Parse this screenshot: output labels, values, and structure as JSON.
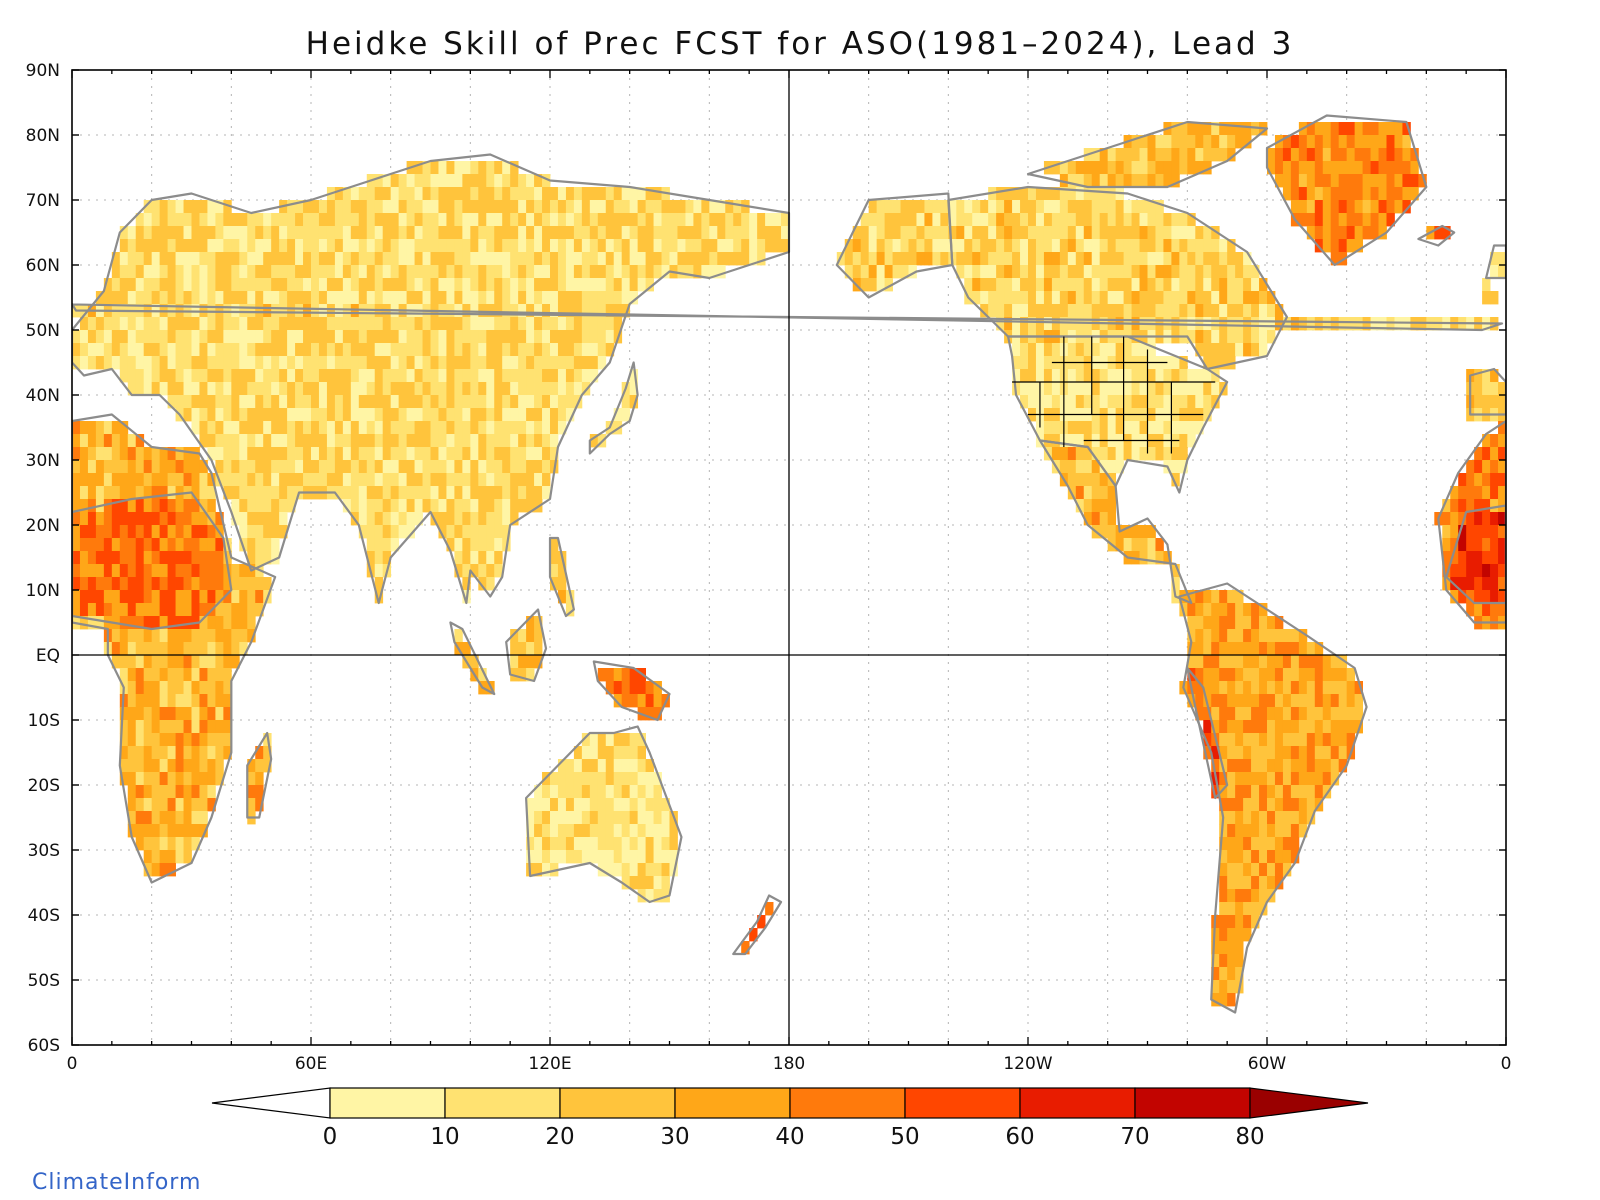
{
  "title": "Heidke Skill of Prec FCST for ASO(1981–2024), Lead 3",
  "brand": "ClimateInform",
  "map": {
    "lat_range": [
      -60,
      90
    ],
    "lon_range": [
      0,
      360
    ],
    "lat_ticks": [
      {
        "value": 90,
        "label": "90N"
      },
      {
        "value": 80,
        "label": "80N"
      },
      {
        "value": 70,
        "label": "70N"
      },
      {
        "value": 60,
        "label": "60N"
      },
      {
        "value": 50,
        "label": "50N"
      },
      {
        "value": 40,
        "label": "40N"
      },
      {
        "value": 30,
        "label": "30N"
      },
      {
        "value": 20,
        "label": "20N"
      },
      {
        "value": 10,
        "label": "10N"
      },
      {
        "value": 0,
        "label": "EQ"
      },
      {
        "value": -10,
        "label": "10S"
      },
      {
        "value": -20,
        "label": "20S"
      },
      {
        "value": -30,
        "label": "30S"
      },
      {
        "value": -40,
        "label": "40S"
      },
      {
        "value": -50,
        "label": "50S"
      },
      {
        "value": -60,
        "label": "60S"
      }
    ],
    "lon_ticks": [
      {
        "value": 0,
        "label": "0"
      },
      {
        "value": 60,
        "label": "60E"
      },
      {
        "value": 120,
        "label": "120E"
      },
      {
        "value": 180,
        "label": "180"
      },
      {
        "value": 240,
        "label": "120W"
      },
      {
        "value": 300,
        "label": "60W"
      },
      {
        "value": 360,
        "label": "0"
      }
    ],
    "colors": {
      "land_outline": "#8c8c8c",
      "state_lines": "#000000",
      "frame": "#000000",
      "grid": "#b4b4b4"
    },
    "regions": [
      {
        "name": "Eurasia",
        "poly": [
          [
            0,
            50
          ],
          [
            8,
            56
          ],
          [
            12,
            65
          ],
          [
            20,
            70
          ],
          [
            30,
            71
          ],
          [
            45,
            68
          ],
          [
            60,
            70
          ],
          [
            75,
            73
          ],
          [
            90,
            76
          ],
          [
            105,
            77
          ],
          [
            120,
            73
          ],
          [
            140,
            72
          ],
          [
            160,
            70
          ],
          [
            180,
            68
          ],
          [
            180,
            62
          ],
          [
            170,
            60
          ],
          [
            160,
            58
          ],
          [
            150,
            59
          ],
          [
            140,
            54
          ],
          [
            135,
            45
          ],
          [
            128,
            40
          ],
          [
            122,
            32
          ],
          [
            120,
            24
          ],
          [
            110,
            20
          ],
          [
            108,
            12
          ],
          [
            105,
            9
          ],
          [
            100,
            13
          ],
          [
            99,
            8
          ],
          [
            95,
            16
          ],
          [
            90,
            22
          ],
          [
            80,
            15
          ],
          [
            77,
            8
          ],
          [
            72,
            20
          ],
          [
            66,
            25
          ],
          [
            57,
            25
          ],
          [
            52,
            15
          ],
          [
            45,
            13
          ],
          [
            40,
            22
          ],
          [
            35,
            30
          ],
          [
            27,
            37
          ],
          [
            22,
            40
          ],
          [
            15,
            40
          ],
          [
            10,
            44
          ],
          [
            3,
            43
          ],
          [
            0,
            45
          ]
        ],
        "skill": 15
      },
      {
        "name": "Africa",
        "poly": [
          [
            0,
            36
          ],
          [
            10,
            37
          ],
          [
            20,
            32
          ],
          [
            32,
            31
          ],
          [
            35,
            28
          ],
          [
            40,
            15
          ],
          [
            51,
            12
          ],
          [
            45,
            2
          ],
          [
            40,
            -4
          ],
          [
            40,
            -15
          ],
          [
            35,
            -25
          ],
          [
            30,
            -32
          ],
          [
            20,
            -35
          ],
          [
            15,
            -28
          ],
          [
            12,
            -17
          ],
          [
            13,
            -5
          ],
          [
            9,
            0
          ],
          [
            9,
            4
          ],
          [
            0,
            5
          ]
        ],
        "skill": 28
      },
      {
        "name": "Sahel",
        "poly": [
          [
            0,
            22
          ],
          [
            15,
            24
          ],
          [
            30,
            25
          ],
          [
            38,
            18
          ],
          [
            40,
            10
          ],
          [
            32,
            5
          ],
          [
            20,
            4
          ],
          [
            10,
            5
          ],
          [
            0,
            6
          ]
        ],
        "skill": 45
      },
      {
        "name": "Madagascar",
        "poly": [
          [
            44,
            -25
          ],
          [
            44,
            -17
          ],
          [
            49,
            -12
          ],
          [
            50,
            -16
          ],
          [
            47,
            -25
          ]
        ],
        "skill": 30
      },
      {
        "name": "Australia",
        "poly": [
          [
            114,
            -22
          ],
          [
            115,
            -34
          ],
          [
            130,
            -32
          ],
          [
            138,
            -35
          ],
          [
            145,
            -38
          ],
          [
            150,
            -37
          ],
          [
            153,
            -28
          ],
          [
            145,
            -15
          ],
          [
            142,
            -11
          ],
          [
            136,
            -12
          ],
          [
            130,
            -12
          ],
          [
            122,
            -17
          ]
        ],
        "skill": 12
      },
      {
        "name": "New Guinea",
        "poly": [
          [
            131,
            -1
          ],
          [
            141,
            -2
          ],
          [
            150,
            -6
          ],
          [
            147,
            -10
          ],
          [
            138,
            -8
          ],
          [
            132,
            -4
          ]
        ],
        "skill": 45
      },
      {
        "name": "Borneo",
        "poly": [
          [
            109,
            2
          ],
          [
            117,
            7
          ],
          [
            119,
            1
          ],
          [
            116,
            -4
          ],
          [
            110,
            -3
          ]
        ],
        "skill": 25
      },
      {
        "name": "Sumatra",
        "poly": [
          [
            95,
            5
          ],
          [
            98,
            4
          ],
          [
            106,
            -6
          ],
          [
            103,
            -5
          ],
          [
            96,
            2
          ]
        ],
        "skill": 25
      },
      {
        "name": "Japan",
        "poly": [
          [
            130,
            31
          ],
          [
            135,
            34
          ],
          [
            140,
            36
          ],
          [
            142,
            40
          ],
          [
            141,
            45
          ],
          [
            139,
            41
          ],
          [
            135,
            35
          ],
          [
            130,
            33
          ]
        ],
        "skill": 10
      },
      {
        "name": "Philippines",
        "poly": [
          [
            120,
            18
          ],
          [
            122,
            18
          ],
          [
            126,
            7
          ],
          [
            124,
            6
          ],
          [
            120,
            12
          ]
        ],
        "skill": 22
      },
      {
        "name": "New Zealand",
        "poly": [
          [
            166,
            -46
          ],
          [
            172,
            -41
          ],
          [
            175,
            -37
          ],
          [
            178,
            -38
          ],
          [
            174,
            -42
          ],
          [
            169,
            -46
          ]
        ],
        "skill": 55
      },
      {
        "name": "UK",
        "poly": [
          [
            354,
            50
          ],
          [
            359,
            51
          ],
          [
            1,
            53
          ],
          [
            -2,
            56
          ],
          [
            -5,
            58
          ],
          [
            -6,
            54
          ]
        ],
        "skill": 18
      },
      {
        "name": "Alaska",
        "poly": [
          [
            192,
            60
          ],
          [
            200,
            70
          ],
          [
            220,
            71
          ],
          [
            221,
            60
          ],
          [
            212,
            59
          ],
          [
            200,
            55
          ]
        ],
        "skill": 20
      },
      {
        "name": "Canada",
        "poly": [
          [
            221,
            60
          ],
          [
            220,
            70
          ],
          [
            240,
            72
          ],
          [
            265,
            71
          ],
          [
            280,
            68
          ],
          [
            295,
            62
          ],
          [
            305,
            52
          ],
          [
            300,
            46
          ],
          [
            285,
            44
          ],
          [
            280,
            49
          ],
          [
            265,
            49
          ],
          [
            235,
            49
          ],
          [
            225,
            55
          ]
        ],
        "skill": 18
      },
      {
        "name": "Arctic Archipelago",
        "poly": [
          [
            240,
            74
          ],
          [
            260,
            78
          ],
          [
            280,
            82
          ],
          [
            300,
            81
          ],
          [
            290,
            76
          ],
          [
            275,
            72
          ],
          [
            255,
            72
          ]
        ],
        "skill": 25
      },
      {
        "name": "Greenland",
        "poly": [
          [
            300,
            78
          ],
          [
            315,
            83
          ],
          [
            335,
            82
          ],
          [
            340,
            72
          ],
          [
            330,
            65
          ],
          [
            317,
            60
          ],
          [
            307,
            67
          ],
          [
            300,
            75
          ]
        ],
        "skill": 40
      },
      {
        "name": "USA",
        "poly": [
          [
            235,
            49
          ],
          [
            265,
            49
          ],
          [
            285,
            44
          ],
          [
            290,
            42
          ],
          [
            284,
            35
          ],
          [
            280,
            30
          ],
          [
            278,
            25
          ],
          [
            275,
            29
          ],
          [
            265,
            30
          ],
          [
            262,
            26
          ],
          [
            255,
            32
          ],
          [
            243,
            33
          ],
          [
            237,
            40
          ],
          [
            236,
            46
          ]
        ],
        "skill": 12
      },
      {
        "name": "Mexico & Central America",
        "poly": [
          [
            243,
            33
          ],
          [
            255,
            32
          ],
          [
            262,
            26
          ],
          [
            263,
            19
          ],
          [
            270,
            21
          ],
          [
            275,
            17
          ],
          [
            277,
            9
          ],
          [
            281,
            8
          ],
          [
            277,
            14
          ],
          [
            265,
            15
          ],
          [
            255,
            20
          ],
          [
            250,
            26
          ]
        ],
        "skill": 28
      },
      {
        "name": "South America",
        "poly": [
          [
            278,
            9
          ],
          [
            290,
            11
          ],
          [
            300,
            7
          ],
          [
            310,
            3
          ],
          [
            322,
            -2
          ],
          [
            325,
            -8
          ],
          [
            320,
            -17
          ],
          [
            312,
            -24
          ],
          [
            307,
            -32
          ],
          [
            300,
            -38
          ],
          [
            295,
            -45
          ],
          [
            292,
            -55
          ],
          [
            286,
            -53
          ],
          [
            287,
            -40
          ],
          [
            289,
            -25
          ],
          [
            286,
            -15
          ],
          [
            279,
            -5
          ],
          [
            281,
            2
          ]
        ],
        "skill": 32
      },
      {
        "name": "Andes",
        "poly": [
          [
            280,
            -2
          ],
          [
            284,
            -5
          ],
          [
            290,
            -20
          ],
          [
            287,
            -22
          ],
          [
            282,
            -8
          ]
        ],
        "skill": 55
      },
      {
        "name": "Iceland",
        "poly": [
          [
            338,
            64
          ],
          [
            344,
            66
          ],
          [
            347,
            65
          ],
          [
            343,
            63
          ]
        ],
        "skill": 45
      },
      {
        "name": "West Africa edge",
        "poly": [
          [
            343,
            21
          ],
          [
            348,
            28
          ],
          [
            355,
            34
          ],
          [
            360,
            36
          ],
          [
            360,
            5
          ],
          [
            352,
            5
          ],
          [
            345,
            10
          ]
        ],
        "skill": 40
      },
      {
        "name": "West Sahel edge",
        "poly": [
          [
            345,
            12
          ],
          [
            350,
            22
          ],
          [
            360,
            23
          ],
          [
            360,
            8
          ],
          [
            352,
            8
          ]
        ],
        "skill": 58
      },
      {
        "name": "Iberia edge",
        "poly": [
          [
            351,
            37
          ],
          [
            351,
            43
          ],
          [
            357,
            44
          ],
          [
            360,
            42
          ],
          [
            360,
            37
          ]
        ],
        "skill": 22
      },
      {
        "name": "Scandinavia edge",
        "poly": [
          [
            355,
            58
          ],
          [
            357,
            63
          ],
          [
            360,
            63
          ],
          [
            360,
            58
          ]
        ],
        "skill": 15
      }
    ],
    "colorbar": {
      "boundaries": [
        "0",
        "10",
        "20",
        "30",
        "40",
        "50",
        "60",
        "70",
        "80"
      ],
      "below_color": "#ffffff",
      "colors": [
        "#fff5a5",
        "#ffe271",
        "#ffc43c",
        "#ffa718",
        "#ff7a0c",
        "#ff4600",
        "#e81c00",
        "#c20400"
      ],
      "above_color": "#9a0000"
    }
  }
}
